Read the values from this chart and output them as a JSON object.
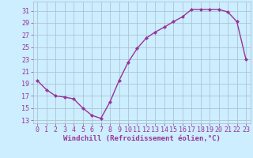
{
  "x": [
    0,
    1,
    2,
    3,
    4,
    5,
    6,
    7,
    8,
    9,
    10,
    11,
    12,
    13,
    14,
    15,
    16,
    17,
    18,
    19,
    20,
    21,
    22,
    23
  ],
  "y": [
    19.5,
    18.0,
    17.0,
    16.8,
    16.5,
    15.0,
    13.8,
    13.3,
    16.0,
    19.5,
    22.5,
    24.8,
    26.5,
    27.5,
    28.3,
    29.2,
    30.0,
    31.2,
    31.2,
    31.2,
    31.2,
    30.8,
    29.2,
    23.0
  ],
  "line_color": "#993399",
  "marker": "D",
  "marker_size": 2.0,
  "bg_color": "#cceeff",
  "grid_color": "#aabbcc",
  "ylabel_ticks": [
    13,
    15,
    17,
    19,
    21,
    23,
    25,
    27,
    29,
    31
  ],
  "ylim": [
    12.5,
    32.5
  ],
  "xlim": [
    -0.5,
    23.5
  ],
  "xlabel": "Windchill (Refroidissement éolien,°C)",
  "xlabel_fontsize": 6.5,
  "tick_fontsize": 6.0,
  "line_width": 1.0
}
